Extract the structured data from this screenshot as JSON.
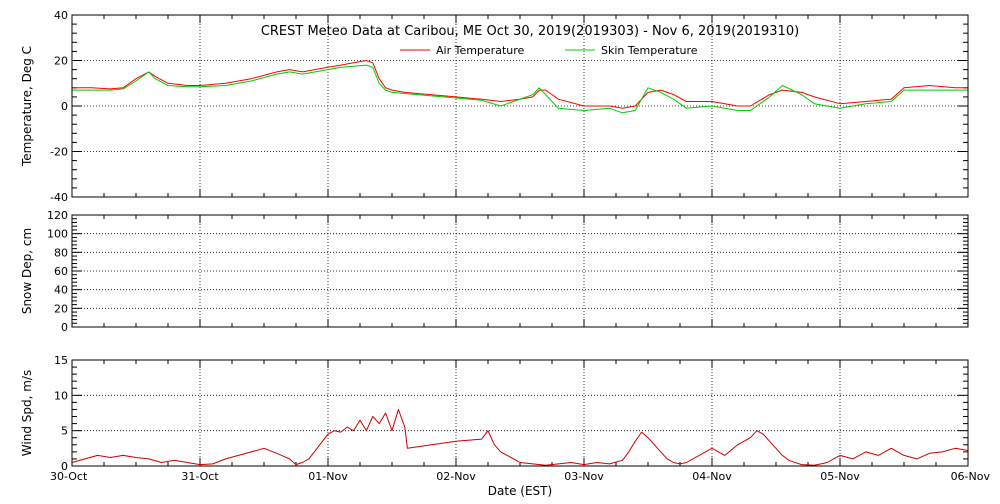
{
  "title": "CREST Meteo Data at Caribou, ME   Oct 30, 2019(2019303) - Nov  6, 2019(2019310)",
  "xlabel": "Date (EST)",
  "x_ticks": [
    "30-Oct",
    "31-Oct",
    "01-Nov",
    "02-Nov",
    "03-Nov",
    "04-Nov",
    "05-Nov",
    "06-Nov"
  ],
  "chart_data": [
    {
      "type": "line",
      "panel": "temperature",
      "ylabel": "Temperature, Deg C",
      "ylim": [
        -40,
        40
      ],
      "yticks": [
        -40,
        -20,
        0,
        20,
        40
      ],
      "xlim": [
        0,
        7
      ],
      "grid": true,
      "legend": "top-center",
      "series": [
        {
          "name": "Air Temperature",
          "color": "#ff0000",
          "x": [
            0,
            0.15,
            0.3,
            0.4,
            0.5,
            0.6,
            0.65,
            0.75,
            0.9,
            1.0,
            1.2,
            1.4,
            1.6,
            1.7,
            1.8,
            2.0,
            2.1,
            2.2,
            2.3,
            2.35,
            2.4,
            2.45,
            2.5,
            2.6,
            2.7,
            3.0,
            3.2,
            3.35,
            3.5,
            3.6,
            3.65,
            3.7,
            3.8,
            4.0,
            4.2,
            4.3,
            4.4,
            4.5,
            4.6,
            4.7,
            4.8,
            5.0,
            5.2,
            5.3,
            5.45,
            5.55,
            5.7,
            5.8,
            6.0,
            6.2,
            6.4,
            6.5,
            6.7,
            6.9,
            7.0
          ],
          "y": [
            8,
            8,
            7.5,
            8,
            12,
            15,
            13,
            10,
            9,
            9,
            10,
            12,
            15,
            16,
            15,
            17,
            18,
            19,
            20,
            19,
            12,
            8,
            7,
            6,
            5.5,
            4,
            3,
            2,
            3,
            4,
            7,
            7,
            3,
            0,
            0,
            -1,
            0,
            6,
            7,
            5,
            2,
            2,
            0,
            0,
            5,
            7,
            6,
            4,
            1,
            2,
            3,
            8,
            9,
            8,
            8
          ]
        },
        {
          "name": "Skin Temperature",
          "color": "#00cc00",
          "x": [
            0,
            0.15,
            0.3,
            0.4,
            0.5,
            0.6,
            0.65,
            0.75,
            0.9,
            1.0,
            1.2,
            1.4,
            1.6,
            1.7,
            1.8,
            2.0,
            2.1,
            2.2,
            2.3,
            2.35,
            2.4,
            2.45,
            2.5,
            2.6,
            2.7,
            3.0,
            3.2,
            3.35,
            3.5,
            3.6,
            3.65,
            3.7,
            3.8,
            4.0,
            4.2,
            4.3,
            4.4,
            4.5,
            4.6,
            4.7,
            4.8,
            5.0,
            5.2,
            5.3,
            5.45,
            5.55,
            5.7,
            5.8,
            6.0,
            6.2,
            6.4,
            6.5,
            6.7,
            6.9,
            7.0
          ],
          "y": [
            7,
            7,
            7,
            7.5,
            11,
            15,
            12,
            9,
            8.5,
            8.5,
            9,
            11,
            14,
            15,
            14,
            16,
            17,
            17.5,
            18,
            17,
            10,
            7,
            6,
            5.5,
            5,
            3.5,
            2.5,
            0,
            3,
            5,
            8,
            5,
            -1,
            -2,
            -1,
            -3,
            -2,
            8,
            6,
            3,
            -1,
            0,
            -2,
            -2,
            4,
            9,
            5,
            1,
            -1,
            1,
            2,
            7,
            7,
            7,
            7
          ]
        }
      ]
    },
    {
      "type": "line",
      "panel": "snow",
      "ylabel": "Snow Dep, cm",
      "ylim": [
        0,
        120
      ],
      "yticks": [
        0,
        20,
        40,
        60,
        80,
        100,
        120
      ],
      "xlim": [
        0,
        7
      ],
      "grid": true,
      "series": []
    },
    {
      "type": "line",
      "panel": "wind",
      "ylabel": "Wind Spd, m/s",
      "ylim": [
        0,
        15
      ],
      "yticks": [
        0,
        5,
        10,
        15
      ],
      "xlim": [
        0,
        7
      ],
      "grid": true,
      "series": [
        {
          "color": "#cc0000",
          "x": [
            0,
            0.1,
            0.2,
            0.3,
            0.4,
            0.5,
            0.6,
            0.7,
            0.8,
            0.9,
            1.0,
            1.1,
            1.2,
            1.3,
            1.4,
            1.5,
            1.6,
            1.7,
            1.75,
            1.8,
            1.85,
            2.0,
            2.05,
            2.1,
            2.15,
            2.2,
            2.25,
            2.3,
            2.35,
            2.4,
            2.45,
            2.5,
            2.55,
            2.6,
            2.62,
            3.0,
            3.2,
            3.25,
            3.3,
            3.35,
            3.4,
            3.45,
            3.5,
            3.6,
            3.7,
            3.8,
            3.9,
            4.0,
            4.1,
            4.2,
            4.3,
            4.35,
            4.4,
            4.45,
            4.5,
            4.55,
            4.6,
            4.65,
            4.7,
            4.75,
            4.8,
            4.9,
            5.0,
            5.1,
            5.2,
            5.3,
            5.35,
            5.4,
            5.45,
            5.5,
            5.55,
            5.6,
            5.7,
            5.8,
            5.9,
            6.0,
            6.1,
            6.2,
            6.3,
            6.4,
            6.5,
            6.6,
            6.7,
            6.8,
            6.9,
            7.0
          ],
          "y": [
            0.5,
            1,
            1.5,
            1.2,
            1.5,
            1.2,
            1,
            0.5,
            0.8,
            0.5,
            0.2,
            0.3,
            1,
            1.5,
            2,
            2.5,
            1.8,
            1,
            0.2,
            0.5,
            1,
            4.5,
            5,
            4.8,
            5.5,
            5,
            6.5,
            5,
            7,
            6,
            7.5,
            5,
            8,
            5.5,
            2.5,
            3.5,
            3.8,
            5,
            3,
            2,
            1.5,
            1,
            0.5,
            0.3,
            0.1,
            0.3,
            0.5,
            0.2,
            0.5,
            0.3,
            0.8,
            2,
            3.5,
            4.8,
            4,
            3,
            2,
            1,
            0.5,
            0.3,
            0.5,
            1.5,
            2.5,
            1.5,
            3,
            4,
            5,
            4.5,
            3.5,
            2.5,
            1.5,
            0.8,
            0.2,
            0.1,
            0.5,
            1.5,
            1,
            2,
            1.5,
            2.5,
            1.5,
            1,
            1.8,
            2,
            2.5,
            2.2
          ]
        }
      ]
    }
  ]
}
